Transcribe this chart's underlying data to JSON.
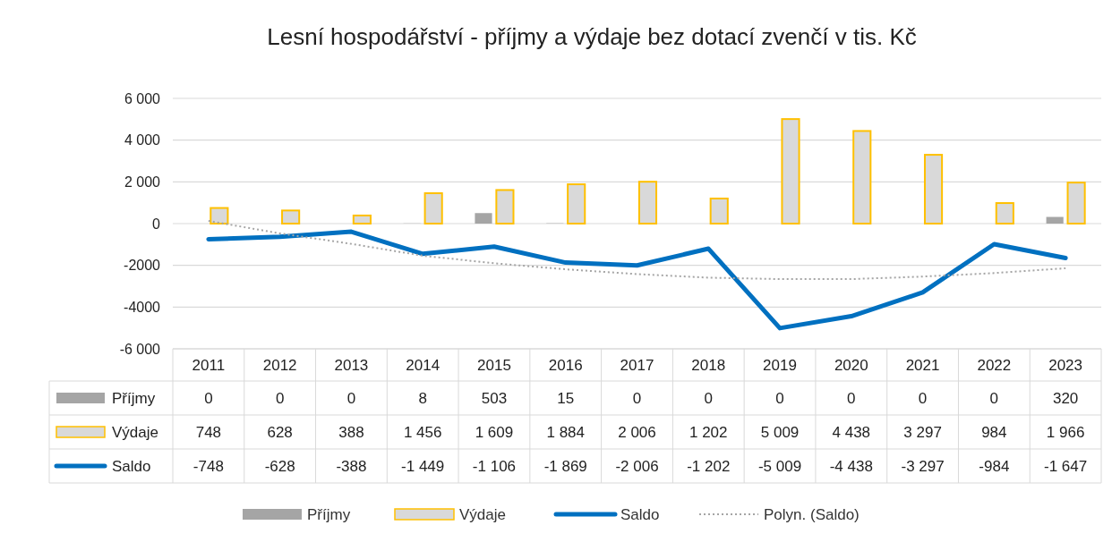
{
  "chart_data": {
    "type": "bar",
    "title": "Lesní hospodářství - příjmy a výdaje bez dotací zvenčí v tis. Kč",
    "categories": [
      "2011",
      "2012",
      "2013",
      "2014",
      "2015",
      "2016",
      "2017",
      "2018",
      "2019",
      "2020",
      "2021",
      "2022",
      "2023"
    ],
    "series": [
      {
        "name": "Příjmy",
        "color": "#a5a5a5",
        "values": [
          0,
          0,
          0,
          8,
          503,
          15,
          0,
          0,
          0,
          0,
          0,
          0,
          320
        ],
        "value_labels": [
          "0",
          "0",
          "0",
          "8",
          "503",
          "15",
          "0",
          "0",
          "0",
          "0",
          "0",
          "0",
          "320"
        ]
      },
      {
        "name": "Výdaje",
        "color": "#d9d9d9",
        "values": [
          748,
          628,
          388,
          1456,
          1609,
          1884,
          2006,
          1202,
          5009,
          4438,
          3297,
          984,
          1966
        ],
        "value_labels": [
          "748",
          "628",
          "388",
          "1 456",
          "1 609",
          "1 884",
          "2 006",
          "1 202",
          "5 009",
          "4 438",
          "3 297",
          "984",
          "1 966"
        ]
      },
      {
        "name": "Saldo",
        "type": "line",
        "color": "#0070c0",
        "values": [
          -748,
          -628,
          -388,
          -1449,
          -1106,
          -1869,
          -2006,
          -1202,
          -5009,
          -4438,
          -3297,
          -984,
          -1647
        ],
        "value_labels": [
          "-748",
          "-628",
          "-388",
          "-1 449",
          "-1 106",
          "-1 869",
          "-2 006",
          "-1 202",
          "-5 009",
          "-4 438",
          "-3 297",
          "-984",
          "-1 647"
        ]
      },
      {
        "name": "Polyn. (Saldo)",
        "type": "line",
        "line_style": "dotted",
        "color": "#a5a5a5",
        "values": [
          130,
          -470,
          -970,
          -1540,
          -1900,
          -2190,
          -2420,
          -2590,
          -2660,
          -2660,
          -2540,
          -2370,
          -2140
        ]
      }
    ],
    "ylim": [
      -6000,
      6000
    ],
    "yticks": [
      {
        "value": 6000,
        "label": "6 000"
      },
      {
        "value": 4000,
        "label": "4 000"
      },
      {
        "value": 2000,
        "label": "2 000"
      },
      0,
      {
        "value": -2000,
        "label": "-2000"
      },
      {
        "value": -4000,
        "label": "-4000"
      },
      {
        "value": -6000,
        "label": "-6 000"
      }
    ],
    "grid": "y",
    "legend": "bottom"
  }
}
